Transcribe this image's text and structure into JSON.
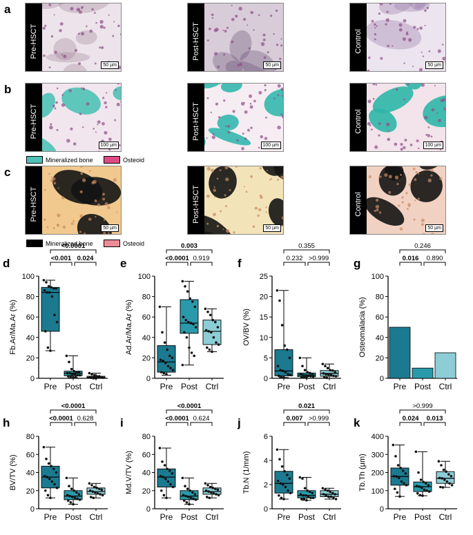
{
  "rows": [
    {
      "id": "a",
      "panels": [
        {
          "label": "Pre-HSCT",
          "scale": "50 µm",
          "bg": "#ece4ea",
          "fg": "#a4889c"
        },
        {
          "label": "Post-HSCT",
          "scale": "50 µm",
          "bg": "#d8ccd8",
          "fg": "#6b5478"
        },
        {
          "label": "Control",
          "scale": "50 µm",
          "bg": "#ece4ee",
          "fg": "#9a7aa8"
        }
      ]
    },
    {
      "id": "b",
      "panels": [
        {
          "label": "Pre-HSCT",
          "scale": "100 µm",
          "bg": "#f2e6ee",
          "fg": "#4fc2b6"
        },
        {
          "label": "Post-HSCT",
          "scale": "100 µm",
          "bg": "#f6edf2",
          "fg": "#35b7ae"
        },
        {
          "label": "Control",
          "scale": "100 µm",
          "bg": "#f3e3ea",
          "fg": "#2fb6a8"
        }
      ]
    },
    {
      "id": "c",
      "panels": [
        {
          "label": "Pre-HSCT",
          "scale": "50 µm",
          "bg": "#f1c98e",
          "fg": "#141414"
        },
        {
          "label": "Post-HSCT",
          "scale": "50 µm",
          "bg": "#f3e3b8",
          "fg": "#141414"
        },
        {
          "label": "Control",
          "scale": "50 µm",
          "bg": "#f1d2c2",
          "fg": "#141414"
        }
      ]
    }
  ],
  "legend_b": [
    {
      "label": "Mineralized bone",
      "color": "#4fc2b6"
    },
    {
      "label": "Osteoid",
      "color": "#de4a86"
    }
  ],
  "legend_c": [
    {
      "label": "Mineralized bone",
      "color": "#000000"
    },
    {
      "label": "Osteoid",
      "color": "#ec8c96"
    }
  ],
  "colors": {
    "Pre": "#1b7a90",
    "Post": "#2a9aaa",
    "Ctrl": "#8ccdd6"
  },
  "chart_data": [
    {
      "id": "d",
      "type": "box",
      "ylabel": "Fb.Ar/Ma.Ar (%)",
      "ylim": [
        0,
        100
      ],
      "yticks": [
        0,
        20,
        40,
        60,
        80,
        100
      ],
      "categories": [
        "Pre",
        "Post",
        "Ctrl"
      ],
      "boxes": [
        {
          "min": 27,
          "q1": 46,
          "med": 84,
          "q3": 89,
          "max": 96
        },
        {
          "min": 0.5,
          "q1": 2.5,
          "med": 5,
          "q3": 7,
          "max": 22
        },
        {
          "min": 0,
          "q1": 0.5,
          "med": 1,
          "q3": 2,
          "max": 5
        }
      ],
      "points": [
        [
          96,
          94,
          90,
          89,
          88,
          88,
          86,
          84,
          84,
          80,
          62,
          55,
          46,
          30,
          27
        ],
        [
          22,
          16,
          9,
          7,
          6,
          6,
          5,
          5,
          4,
          4,
          3,
          3,
          2,
          2,
          1,
          1
        ],
        [
          5,
          4,
          3,
          2,
          2,
          1,
          1,
          1,
          1,
          1,
          1,
          0.5,
          0.5,
          0,
          0
        ]
      ],
      "brackets": [
        {
          "a": 0,
          "b": 2,
          "label": "<0.0001",
          "bold": true
        },
        {
          "a": 0,
          "b": 1,
          "label": "<0.001",
          "bold": true
        },
        {
          "a": 1,
          "b": 2,
          "label": "0.024",
          "bold": true
        }
      ]
    },
    {
      "id": "e",
      "type": "box",
      "ylabel": "Ad.Ar/Ma.Ar (%)",
      "ylim": [
        0,
        100
      ],
      "yticks": [
        0,
        20,
        40,
        60,
        80,
        100
      ],
      "categories": [
        "Pre",
        "Post",
        "Ctrl"
      ],
      "boxes": [
        {
          "min": 3,
          "q1": 6,
          "med": 16,
          "q3": 32,
          "max": 70
        },
        {
          "min": 13,
          "q1": 44,
          "med": 54,
          "q3": 77,
          "max": 95
        },
        {
          "min": 26,
          "q1": 33,
          "med": 46,
          "q3": 57,
          "max": 68
        }
      ],
      "points": [
        [
          70,
          45,
          35,
          28,
          22,
          20,
          18,
          17,
          15,
          12,
          10,
          8,
          6,
          5,
          4
        ],
        [
          95,
          90,
          85,
          78,
          75,
          70,
          60,
          57,
          55,
          54,
          53,
          50,
          45,
          40,
          30,
          25,
          22,
          13
        ],
        [
          68,
          65,
          62,
          57,
          55,
          50,
          47,
          46,
          45,
          40,
          35,
          33,
          30,
          28,
          26
        ]
      ],
      "brackets": [
        {
          "a": 0,
          "b": 2,
          "label": "0.003",
          "bold": true
        },
        {
          "a": 0,
          "b": 1,
          "label": "<0.0001",
          "bold": true
        },
        {
          "a": 1,
          "b": 2,
          "label": "0.919",
          "bold": false
        }
      ]
    },
    {
      "id": "f",
      "type": "box",
      "ylabel": "OV/BV (%)",
      "ylim": [
        0,
        25
      ],
      "yticks": [
        0,
        5,
        10,
        15,
        20,
        25
      ],
      "categories": [
        "Pre",
        "Post",
        "Ctrl"
      ],
      "boxes": [
        {
          "min": 0.2,
          "q1": 0.6,
          "med": 1.8,
          "q3": 7,
          "max": 21.5
        },
        {
          "min": 0,
          "q1": 0.4,
          "med": 0.8,
          "q3": 1.3,
          "max": 5
        },
        {
          "min": 0,
          "q1": 0.5,
          "med": 1.2,
          "q3": 1.9,
          "max": 3.5
        }
      ],
      "points": [
        [
          21.5,
          19,
          13,
          8,
          7,
          5,
          3,
          2,
          1.8,
          1.5,
          1,
          0.8,
          0.6,
          0.4,
          0.2
        ],
        [
          5,
          3,
          2,
          1.5,
          1.3,
          1,
          1,
          0.8,
          0.7,
          0.6,
          0.5,
          0.4,
          0.3,
          0.2,
          0.1
        ],
        [
          3.5,
          3,
          2.5,
          2,
          1.9,
          1.5,
          1.2,
          1,
          0.9,
          0.8,
          0.6,
          0.5,
          0.3,
          0.1
        ]
      ],
      "brackets": [
        {
          "a": 0,
          "b": 2,
          "label": "0.355",
          "bold": false
        },
        {
          "a": 0,
          "b": 1,
          "label": "0.232",
          "bold": false
        },
        {
          "a": 1,
          "b": 2,
          "label": ">0.999",
          "bold": false
        }
      ]
    },
    {
      "id": "g",
      "type": "bar",
      "ylabel": "Osteomalacia (%)",
      "ylim": [
        0,
        100
      ],
      "yticks": [
        0,
        20,
        40,
        60,
        80,
        100
      ],
      "categories": [
        "Pre",
        "Post",
        "Ctrl"
      ],
      "values": [
        50,
        10,
        25
      ],
      "brackets": [
        {
          "a": 0,
          "b": 2,
          "label": "0.246",
          "bold": false
        },
        {
          "a": 0,
          "b": 1,
          "label": "0.016",
          "bold": true
        },
        {
          "a": 1,
          "b": 2,
          "label": "0.890",
          "bold": false
        }
      ]
    },
    {
      "id": "h",
      "type": "box",
      "ylabel": "BV/TV (%)",
      "ylim": [
        0,
        80
      ],
      "yticks": [
        0,
        20,
        40,
        60,
        80
      ],
      "categories": [
        "Pre",
        "Post",
        "Ctrl"
      ],
      "boxes": [
        {
          "min": 12,
          "q1": 23,
          "med": 35,
          "q3": 47,
          "max": 68
        },
        {
          "min": 5,
          "q1": 10,
          "med": 14,
          "q3": 20,
          "max": 34
        },
        {
          "min": 12,
          "q1": 16,
          "med": 19,
          "q3": 23,
          "max": 28
        }
      ],
      "points": [
        [
          68,
          55,
          50,
          47,
          44,
          40,
          36,
          35,
          33,
          30,
          27,
          23,
          20,
          15,
          12
        ],
        [
          34,
          25,
          22,
          20,
          18,
          16,
          15,
          14,
          13,
          12,
          11,
          10,
          9,
          7,
          5
        ],
        [
          28,
          26,
          24,
          23,
          22,
          21,
          20,
          19,
          18,
          17,
          16,
          15,
          13,
          12
        ]
      ],
      "brackets": [
        {
          "a": 0,
          "b": 2,
          "label": "<0.0001",
          "bold": true
        },
        {
          "a": 0,
          "b": 1,
          "label": "<0.0001",
          "bold": true
        },
        {
          "a": 1,
          "b": 2,
          "label": "0.628",
          "bold": false
        }
      ]
    },
    {
      "id": "i",
      "type": "box",
      "ylabel": "Md.V/TV (%)",
      "ylim": [
        0,
        80
      ],
      "yticks": [
        0,
        20,
        40,
        60,
        80
      ],
      "categories": [
        "Pre",
        "Post",
        "Ctrl"
      ],
      "boxes": [
        {
          "min": 12,
          "q1": 24,
          "med": 35,
          "q3": 44,
          "max": 67
        },
        {
          "min": 5,
          "q1": 10,
          "med": 14,
          "q3": 20,
          "max": 34
        },
        {
          "min": 12,
          "q1": 16,
          "med": 19,
          "q3": 23,
          "max": 28
        }
      ],
      "points": [
        [
          67,
          52,
          48,
          44,
          42,
          39,
          36,
          35,
          33,
          30,
          27,
          24,
          20,
          15,
          12
        ],
        [
          34,
          25,
          22,
          20,
          18,
          16,
          15,
          14,
          13,
          12,
          11,
          10,
          9,
          7,
          5
        ],
        [
          28,
          26,
          24,
          23,
          22,
          21,
          20,
          19,
          18,
          17,
          16,
          15,
          13,
          12
        ]
      ],
      "brackets": [
        {
          "a": 0,
          "b": 2,
          "label": "<0.0001",
          "bold": true
        },
        {
          "a": 0,
          "b": 1,
          "label": "<0.0001",
          "bold": true
        },
        {
          "a": 1,
          "b": 2,
          "label": "0.624",
          "bold": false
        }
      ]
    },
    {
      "id": "j",
      "type": "box",
      "ylabel": "Tb.N (1/mm)",
      "ylim": [
        0,
        6
      ],
      "yticks": [
        0,
        2,
        4,
        6
      ],
      "categories": [
        "Pre",
        "Post",
        "Ctrl"
      ],
      "boxes": [
        {
          "min": 0.8,
          "q1": 1.3,
          "med": 2.1,
          "q3": 3.1,
          "max": 4.9
        },
        {
          "min": 0.7,
          "q1": 0.9,
          "med": 1.1,
          "q3": 1.5,
          "max": 2.6
        },
        {
          "min": 0.8,
          "q1": 1.0,
          "med": 1.2,
          "q3": 1.5,
          "max": 1.7
        }
      ],
      "points": [
        [
          4.9,
          4.1,
          3.5,
          3.1,
          2.8,
          2.5,
          2.3,
          2.1,
          2.0,
          1.8,
          1.5,
          1.3,
          1.1,
          0.9,
          0.8
        ],
        [
          2.6,
          2.5,
          1.7,
          1.5,
          1.4,
          1.3,
          1.2,
          1.1,
          1.1,
          1.0,
          0.9,
          0.9,
          0.8,
          0.8,
          0.7
        ],
        [
          1.7,
          1.6,
          1.5,
          1.4,
          1.3,
          1.2,
          1.2,
          1.1,
          1.0,
          1.0,
          0.9,
          0.8
        ]
      ],
      "brackets": [
        {
          "a": 0,
          "b": 2,
          "label": "0.021",
          "bold": true
        },
        {
          "a": 0,
          "b": 1,
          "label": "0.007",
          "bold": true
        },
        {
          "a": 1,
          "b": 2,
          "label": ">0.999",
          "bold": false
        }
      ]
    },
    {
      "id": "k",
      "type": "box",
      "ylabel": "Tb.Th (µm)",
      "ylim": [
        0,
        400
      ],
      "yticks": [
        0,
        100,
        200,
        300,
        400
      ],
      "categories": [
        "Pre",
        "Post",
        "Ctrl"
      ],
      "boxes": [
        {
          "min": 68,
          "q1": 130,
          "med": 178,
          "q3": 225,
          "max": 352
        },
        {
          "min": 72,
          "q1": 95,
          "med": 122,
          "q3": 148,
          "max": 315
        },
        {
          "min": 118,
          "q1": 140,
          "med": 168,
          "q3": 205,
          "max": 262
        }
      ],
      "points": [
        [
          352,
          290,
          240,
          225,
          210,
          195,
          180,
          178,
          170,
          150,
          140,
          130,
          110,
          90,
          68
        ],
        [
          315,
          200,
          160,
          148,
          140,
          130,
          125,
          122,
          115,
          105,
          100,
          95,
          85,
          75,
          72
        ],
        [
          262,
          240,
          215,
          205,
          190,
          180,
          170,
          168,
          160,
          150,
          140,
          130,
          120,
          118
        ]
      ],
      "brackets": [
        {
          "a": 0,
          "b": 2,
          "label": ">0.999",
          "bold": false
        },
        {
          "a": 0,
          "b": 1,
          "label": "0.024",
          "bold": true
        },
        {
          "a": 1,
          "b": 2,
          "label": "0.013",
          "bold": true
        }
      ]
    }
  ]
}
